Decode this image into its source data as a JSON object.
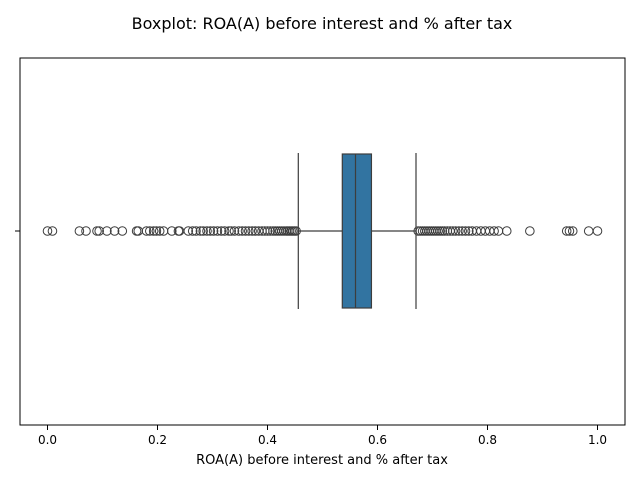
{
  "chart_data": {
    "type": "box",
    "title": "Boxplot:  ROA(A) before interest and % after tax",
    "xlabel": "ROA(A) before interest and % after tax",
    "ylabel": "",
    "xlim": [
      -0.05,
      1.05
    ],
    "x_ticks": [
      0.0,
      0.2,
      0.4,
      0.6,
      0.8,
      1.0
    ],
    "x_tick_labels": [
      "0.0",
      "0.2",
      "0.4",
      "0.6",
      "0.8",
      "1.0"
    ],
    "y_tick_labels": [
      ""
    ],
    "grid": false,
    "box": {
      "q1": 0.536,
      "median": 0.56,
      "q3": 0.589,
      "whisker_low": 0.456,
      "whisker_high": 0.67,
      "color": "#3274a1"
    },
    "outliers": [
      0.0,
      0.009,
      0.058,
      0.07,
      0.09,
      0.094,
      0.108,
      0.122,
      0.136,
      0.162,
      0.165,
      0.18,
      0.186,
      0.193,
      0.198,
      0.204,
      0.211,
      0.226,
      0.238,
      0.24,
      0.256,
      0.264,
      0.27,
      0.278,
      0.283,
      0.29,
      0.296,
      0.302,
      0.309,
      0.316,
      0.322,
      0.33,
      0.334,
      0.34,
      0.348,
      0.354,
      0.36,
      0.366,
      0.372,
      0.378,
      0.384,
      0.39,
      0.395,
      0.4,
      0.405,
      0.41,
      0.414,
      0.418,
      0.422,
      0.426,
      0.43,
      0.434,
      0.437,
      0.44,
      0.443,
      0.446,
      0.449,
      0.452,
      0.674,
      0.678,
      0.682,
      0.686,
      0.69,
      0.694,
      0.698,
      0.702,
      0.706,
      0.71,
      0.714,
      0.718,
      0.722,
      0.727,
      0.732,
      0.737,
      0.742,
      0.748,
      0.754,
      0.76,
      0.766,
      0.772,
      0.78,
      0.788,
      0.796,
      0.804,
      0.812,
      0.82,
      0.835,
      0.877,
      0.944,
      0.949,
      0.955,
      0.984,
      1.0
    ]
  }
}
